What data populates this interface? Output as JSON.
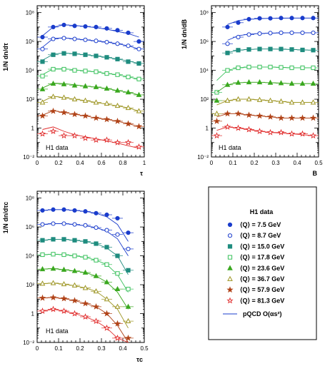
{
  "legend": {
    "title": "H1 data",
    "entries": [
      {
        "label": "⟨Q⟩ =   7.5 GeV",
        "color": "#1a3ccc",
        "marker": "circle",
        "fill": true
      },
      {
        "label": "⟨Q⟩ =   8.7 GeV",
        "color": "#1a3ccc",
        "marker": "circle",
        "fill": false
      },
      {
        "label": "⟨Q⟩ = 15.0 GeV",
        "color": "#1f8c7f",
        "marker": "square",
        "fill": true
      },
      {
        "label": "⟨Q⟩ = 17.8 GeV",
        "color": "#37c05a",
        "marker": "square",
        "fill": false
      },
      {
        "label": "⟨Q⟩ = 23.6 GeV",
        "color": "#3aa81f",
        "marker": "triangle",
        "fill": true
      },
      {
        "label": "⟨Q⟩ = 36.7 GeV",
        "color": "#9c9420",
        "marker": "triangle",
        "fill": false
      },
      {
        "label": "⟨Q⟩ = 57.9 GeV",
        "color": "#b04318",
        "marker": "star",
        "fill": true
      },
      {
        "label": "⟨Q⟩ = 81.3 GeV",
        "color": "#e02a2a",
        "marker": "star",
        "fill": false
      }
    ],
    "theory_label": "pQCD O(αs²)"
  },
  "chart_data": [
    {
      "type": "scatter",
      "panel": "tau",
      "xlabel": "τ",
      "ylabel": "1/N dn/dτ",
      "panel_label": "H1 data",
      "yscale": "log",
      "xlim": [
        0,
        1.0
      ],
      "ylim": [
        0.01,
        300000000
      ],
      "xticks": [
        "0",
        "0.2",
        "0.4",
        "0.6",
        "0.8",
        "1"
      ],
      "yticks": [
        "10⁻²",
        "1",
        "10²",
        "10⁴",
        "10⁶",
        "10⁸"
      ],
      "x": [
        0.05,
        0.15,
        0.25,
        0.35,
        0.45,
        0.55,
        0.65,
        0.75,
        0.85,
        0.95
      ],
      "series": [
        {
          "values": [
            2000000,
            10000000,
            14000000,
            12000000,
            11000000,
            10000000,
            8000000,
            6000000,
            4000000,
            1000000
          ],
          "theory": [
            2500000,
            10000000,
            14000000,
            13000000,
            11000000,
            9000000,
            7000000,
            5000000,
            3500000,
            2000000
          ]
        },
        {
          "values": [
            300000,
            1500000,
            1700000,
            1500000,
            1300000,
            1100000,
            900000,
            700000,
            500000,
            300000
          ],
          "theory": [
            400000,
            1600000,
            1800000,
            1500000,
            1300000,
            1100000,
            900000,
            700000,
            500000,
            300000
          ]
        },
        {
          "values": [
            40000,
            120000,
            150000,
            140000,
            120000,
            100000,
            80000,
            60000,
            40000,
            30000
          ],
          "theory": [
            50000,
            130000,
            160000,
            140000,
            120000,
            100000,
            80000,
            60000,
            45000,
            30000
          ]
        },
        {
          "values": [
            4000,
            12000,
            12000,
            10000,
            9000,
            8000,
            6000,
            5000,
            3500,
            2500
          ],
          "theory": [
            5000,
            13000,
            13000,
            11000,
            9000,
            8000,
            6000,
            5000,
            3500,
            2500
          ]
        },
        {
          "values": [
            500,
            1200,
            1100,
            900,
            800,
            700,
            550,
            400,
            300,
            200
          ],
          "theory": [
            600,
            1300,
            1200,
            1000,
            800,
            700,
            550,
            400,
            300,
            200
          ]
        },
        {
          "values": [
            60,
            150,
            130,
            100,
            80,
            60,
            50,
            35,
            25,
            15
          ],
          "theory": [
            70,
            160,
            130,
            100,
            80,
            60,
            45,
            35,
            25,
            15
          ]
        },
        {
          "values": [
            7,
            15,
            12,
            9,
            7,
            5,
            4,
            3,
            2,
            1.3
          ],
          "theory": [
            8,
            16,
            12,
            9,
            7,
            5,
            4,
            3,
            2,
            1.3
          ]
        },
        {
          "values": [
            0.4,
            0.6,
            0.3,
            0.3,
            0.2,
            0.15,
            0.15,
            0.1,
            0.1,
            0.05
          ],
          "theory": [
            0.8,
            1.2,
            0.6,
            0.35,
            0.25,
            0.18,
            0.13,
            0.09,
            0.06,
            0.04
          ]
        }
      ]
    },
    {
      "type": "scatter",
      "panel": "B",
      "xlabel": "B",
      "ylabel": "1/N dn/dB",
      "panel_label": "H1 data",
      "yscale": "log",
      "xlim": [
        0,
        0.5
      ],
      "ylim": [
        0.01,
        300000000
      ],
      "xticks": [
        "0",
        "0.1",
        "0.2",
        "0.3",
        "0.4",
        "0.5"
      ],
      "yticks": [
        "10⁻²",
        "1",
        "10²",
        "10⁴",
        "10⁶",
        "10⁸"
      ],
      "x": [
        0.025,
        0.075,
        0.125,
        0.175,
        0.225,
        0.275,
        0.325,
        0.375,
        0.425,
        0.475
      ],
      "series": [
        {
          "values": [
            null,
            10000000,
            20000000,
            35000000,
            40000000,
            40000000,
            42000000,
            42000000,
            42000000,
            42000000
          ],
          "theory": [
            null,
            15000000,
            28000000,
            35000000,
            38000000,
            40000000,
            41000000,
            42000000,
            42000000,
            42000000
          ]
        },
        {
          "values": [
            null,
            700000,
            2000000,
            3000000,
            3500000,
            3800000,
            4000000,
            4000000,
            4000000,
            4000000
          ],
          "theory": [
            null,
            1200000,
            2500000,
            3200000,
            3600000,
            3800000,
            3900000,
            4000000,
            4000000,
            4000000
          ]
        },
        {
          "values": [
            null,
            160000,
            250000,
            280000,
            300000,
            300000,
            300000,
            280000,
            260000,
            250000
          ],
          "theory": [
            null,
            170000,
            250000,
            280000,
            300000,
            300000,
            290000,
            280000,
            260000,
            250000
          ]
        },
        {
          "values": [
            300,
            10000,
            15000,
            17000,
            17000,
            17000,
            16000,
            15000,
            15000,
            15000
          ],
          "theory": [
            2000,
            10000,
            15000,
            17000,
            17000,
            17000,
            16000,
            15000,
            15000,
            15000
          ]
        },
        {
          "values": [
            80,
            1000,
            1400,
            1500,
            1500,
            1400,
            1300,
            1200,
            1200,
            1200
          ],
          "theory": [
            300,
            1000,
            1400,
            1500,
            1500,
            1400,
            1300,
            1200,
            1200,
            1200
          ]
        },
        {
          "values": [
            10,
            80,
            100,
            100,
            90,
            80,
            70,
            60,
            60,
            60
          ],
          "theory": [
            40,
            80,
            100,
            100,
            90,
            80,
            70,
            60,
            60,
            60
          ]
        },
        {
          "values": [
            3,
            10,
            10,
            8,
            7,
            6,
            5,
            5,
            5,
            5
          ],
          "theory": [
            6,
            10,
            10,
            8,
            7,
            6,
            5,
            5,
            5,
            5
          ]
        },
        {
          "values": [
            0.3,
            1.2,
            1.0,
            0.8,
            0.6,
            0.5,
            0.5,
            0.4,
            0.4,
            0.3
          ],
          "theory": [
            0.7,
            1.2,
            1.0,
            0.8,
            0.6,
            0.5,
            0.45,
            0.4,
            0.35,
            0.3
          ]
        }
      ]
    },
    {
      "type": "scatter",
      "panel": "tau_c",
      "xlabel": "τc",
      "ylabel": "1/N dn/dτc",
      "panel_label": "H1 data",
      "yscale": "log",
      "xlim": [
        0,
        0.5
      ],
      "ylim": [
        0.01,
        300000000
      ],
      "xticks": [
        "0",
        "0.1",
        "0.2",
        "0.3",
        "0.4",
        "0.5"
      ],
      "yticks": [
        "10⁻²",
        "1",
        "10²",
        "10⁴",
        "10⁶",
        "10⁸"
      ],
      "x": [
        0.025,
        0.075,
        0.125,
        0.175,
        0.225,
        0.275,
        0.325,
        0.375,
        0.425
      ],
      "series": [
        {
          "values": [
            14000000,
            16000000,
            16000000,
            14000000,
            12000000,
            9000000,
            7000000,
            4000000,
            400000
          ],
          "theory": [
            14000000,
            16000000,
            16000000,
            14000000,
            12000000,
            9000000,
            5000000,
            1500000,
            100000
          ]
        },
        {
          "values": [
            1500000,
            1700000,
            1700000,
            1500000,
            1300000,
            900000,
            600000,
            300000,
            30000
          ],
          "theory": [
            1500000,
            1700000,
            1700000,
            1500000,
            1200000,
            900000,
            500000,
            150000,
            10000
          ]
        },
        {
          "values": [
            120000,
            140000,
            140000,
            120000,
            100000,
            70000,
            40000,
            10000,
            1000
          ],
          "theory": [
            120000,
            140000,
            140000,
            120000,
            100000,
            70000,
            35000,
            10000,
            500
          ]
        },
        {
          "values": [
            12000,
            13000,
            12000,
            10000,
            8000,
            5000,
            2500,
            600,
            50
          ],
          "theory": [
            12000,
            13000,
            12000,
            10000,
            8000,
            5000,
            2500,
            500,
            30
          ]
        },
        {
          "values": [
            1200,
            1300,
            1100,
            900,
            700,
            400,
            150,
            50,
            3
          ],
          "theory": [
            1200,
            1300,
            1100,
            900,
            700,
            400,
            150,
            30,
            2
          ]
        },
        {
          "values": [
            120,
            130,
            110,
            90,
            60,
            35,
            10,
            3,
            0.3
          ],
          "theory": [
            120,
            130,
            110,
            85,
            60,
            35,
            10,
            2,
            0.1
          ]
        },
        {
          "values": [
            12,
            13,
            11,
            8,
            5,
            3,
            1,
            0.2,
            0.02
          ],
          "theory": [
            12,
            13,
            11,
            8,
            5,
            3,
            1,
            0.15,
            0.01
          ]
        },
        {
          "values": [
            1.5,
            2,
            1.5,
            1,
            0.6,
            0.3,
            0.1,
            0.02,
            null
          ],
          "theory": [
            1.5,
            2,
            1.5,
            1,
            0.6,
            0.3,
            0.1,
            0.02,
            0.01
          ]
        }
      ]
    }
  ]
}
